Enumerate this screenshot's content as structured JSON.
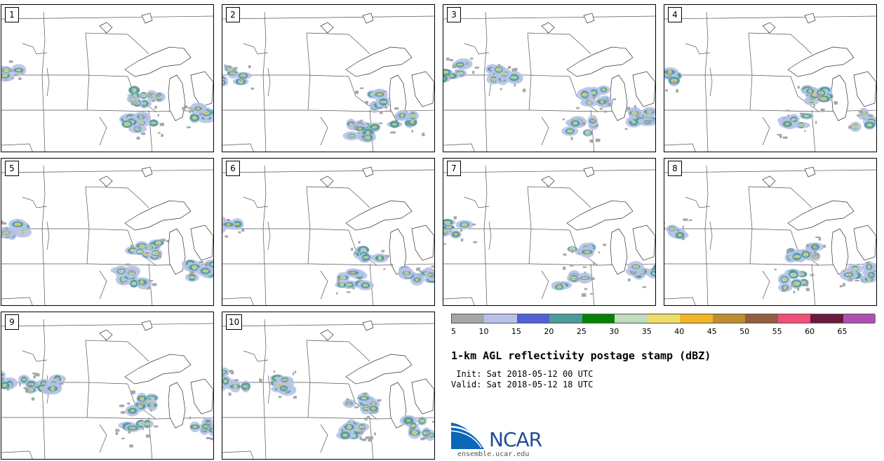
{
  "map": {
    "panels": [
      {
        "label": "1"
      },
      {
        "label": "2"
      },
      {
        "label": "3"
      },
      {
        "label": "4"
      },
      {
        "label": "5"
      },
      {
        "label": "6"
      },
      {
        "label": "7"
      },
      {
        "label": "8"
      },
      {
        "label": "9"
      },
      {
        "label": "10"
      }
    ]
  },
  "colorbar": {
    "thresholds": [
      "5",
      "10",
      "15",
      "20",
      "25",
      "30",
      "35",
      "40",
      "45",
      "50",
      "55",
      "60",
      "65"
    ],
    "colors": [
      "#a6a6a6",
      "#b8c2e8",
      "#5061d8",
      "#4b9b98",
      "#058205",
      "#bfdcbe",
      "#f0dc6a",
      "#f0b428",
      "#bf8c32",
      "#8f5f40",
      "#f05078",
      "#6a1a3c",
      "#b050b0"
    ]
  },
  "title": "1-km AGL reflectivity postage stamp (dBZ)",
  "init_line": " Init: Sat 2018-05-12 00 UTC",
  "valid_line": "Valid: Sat 2018-05-12 18 UTC",
  "logo": {
    "name": "NCAR",
    "url": "ensemble.ucar.edu"
  }
}
